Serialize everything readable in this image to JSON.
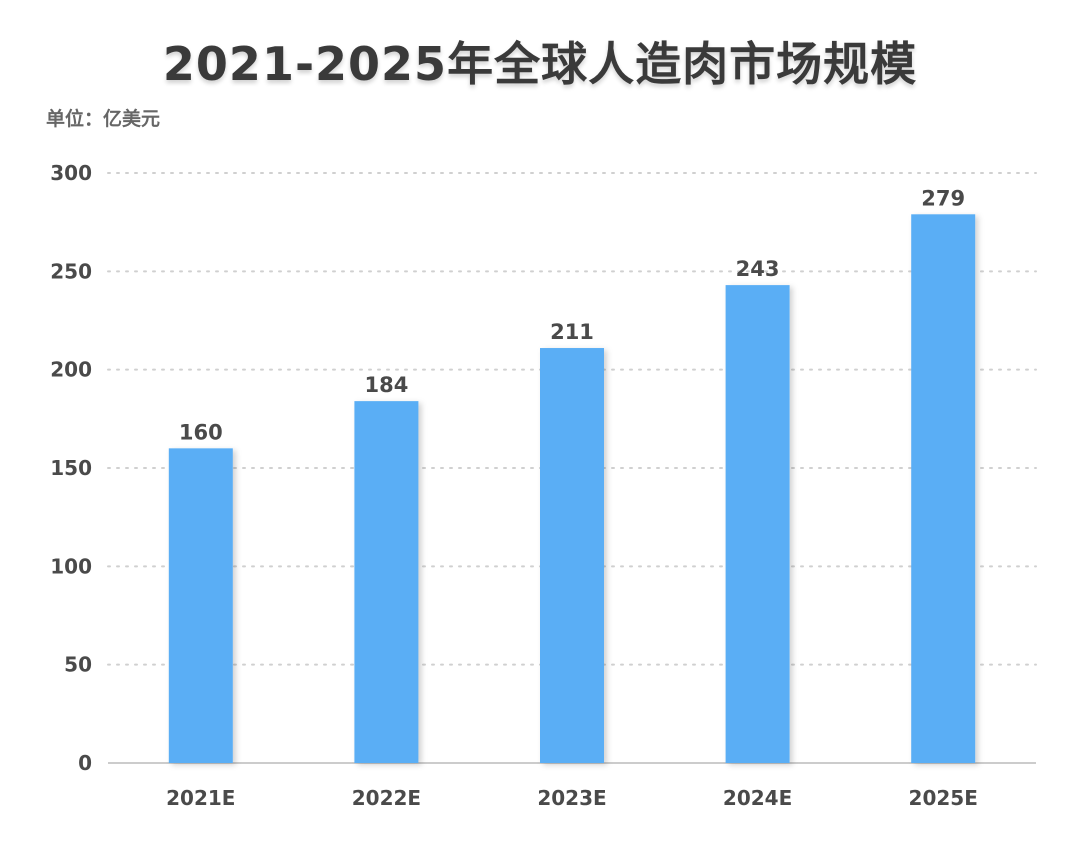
{
  "chart_data": {
    "type": "bar",
    "title": "2021-2025年全球人造肉市场规模",
    "unit_label": "单位：亿美元",
    "categories": [
      "2021E",
      "2022E",
      "2023E",
      "2024E",
      "2025E"
    ],
    "values": [
      160,
      184,
      211,
      243,
      279
    ],
    "ylim": [
      0,
      300
    ],
    "yticks": [
      0,
      50,
      100,
      150,
      200,
      250,
      300
    ],
    "grid": true,
    "legend": "none",
    "colors": {
      "bar": "#5aaef5",
      "grid": "#d0d0d0",
      "axis": "#cccccc",
      "text": "#4a4a4a"
    }
  }
}
